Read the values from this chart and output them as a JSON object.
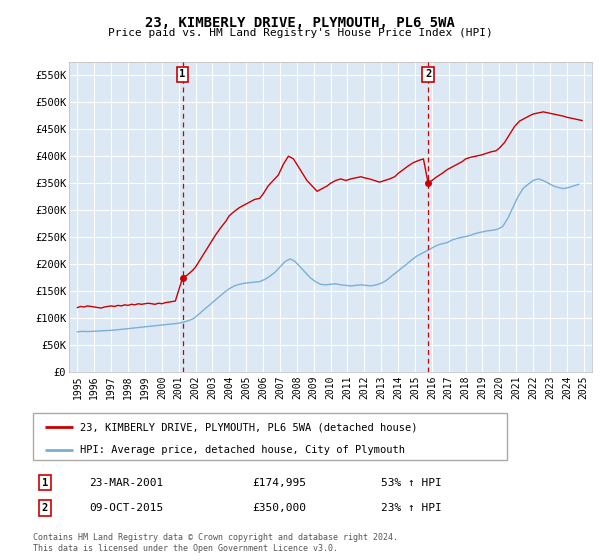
{
  "title": "23, KIMBERLY DRIVE, PLYMOUTH, PL6 5WA",
  "subtitle": "Price paid vs. HM Land Registry's House Price Index (HPI)",
  "bg_color": "#dce9f5",
  "grid_color": "#ffffff",
  "red_line_color": "#cc0000",
  "blue_line_color": "#7ab0d4",
  "marker1_x": 2001.23,
  "marker2_x": 2015.78,
  "marker1_label": "1",
  "marker2_label": "2",
  "ylim": [
    0,
    575000
  ],
  "xlim": [
    1994.5,
    2025.5
  ],
  "yticks": [
    0,
    50000,
    100000,
    150000,
    200000,
    250000,
    300000,
    350000,
    400000,
    450000,
    500000,
    550000
  ],
  "ytick_labels": [
    "£0",
    "£50K",
    "£100K",
    "£150K",
    "£200K",
    "£250K",
    "£300K",
    "£350K",
    "£400K",
    "£450K",
    "£500K",
    "£550K"
  ],
  "xticks": [
    1995,
    1996,
    1997,
    1998,
    1999,
    2000,
    2001,
    2002,
    2003,
    2004,
    2005,
    2006,
    2007,
    2008,
    2009,
    2010,
    2011,
    2012,
    2013,
    2014,
    2015,
    2016,
    2017,
    2018,
    2019,
    2020,
    2021,
    2022,
    2023,
    2024,
    2025
  ],
  "legend_label_red": "23, KIMBERLY DRIVE, PLYMOUTH, PL6 5WA (detached house)",
  "legend_label_blue": "HPI: Average price, detached house, City of Plymouth",
  "annotation1_date": "23-MAR-2001",
  "annotation1_price": "£174,995",
  "annotation1_hpi": "53% ↑ HPI",
  "annotation2_date": "09-OCT-2015",
  "annotation2_price": "£350,000",
  "annotation2_hpi": "23% ↑ HPI",
  "footer": "Contains HM Land Registry data © Crown copyright and database right 2024.\nThis data is licensed under the Open Government Licence v3.0.",
  "red_x": [
    1995.0,
    1995.2,
    1995.4,
    1995.6,
    1995.8,
    1996.0,
    1996.2,
    1996.4,
    1996.6,
    1996.8,
    1997.0,
    1997.2,
    1997.4,
    1997.6,
    1997.8,
    1998.0,
    1998.2,
    1998.4,
    1998.6,
    1998.8,
    1999.0,
    1999.2,
    1999.4,
    1999.6,
    1999.8,
    2000.0,
    2000.2,
    2000.4,
    2000.6,
    2000.8,
    2001.23,
    2001.5,
    2001.8,
    2002.0,
    2002.3,
    2002.6,
    2002.9,
    2003.2,
    2003.5,
    2003.8,
    2004.0,
    2004.3,
    2004.6,
    2004.9,
    2005.2,
    2005.5,
    2005.8,
    2006.0,
    2006.3,
    2006.6,
    2006.9,
    2007.2,
    2007.5,
    2007.8,
    2008.0,
    2008.3,
    2008.6,
    2008.9,
    2009.2,
    2009.5,
    2009.8,
    2010.0,
    2010.3,
    2010.6,
    2010.9,
    2011.2,
    2011.5,
    2011.8,
    2012.0,
    2012.3,
    2012.6,
    2012.9,
    2013.2,
    2013.5,
    2013.8,
    2014.0,
    2014.3,
    2014.6,
    2014.9,
    2015.2,
    2015.5,
    2015.78,
    2016.0,
    2016.3,
    2016.6,
    2016.9,
    2017.2,
    2017.5,
    2017.8,
    2018.0,
    2018.3,
    2018.6,
    2018.9,
    2019.2,
    2019.5,
    2019.8,
    2020.0,
    2020.3,
    2020.6,
    2020.9,
    2021.2,
    2021.5,
    2021.8,
    2022.0,
    2022.3,
    2022.6,
    2022.9,
    2023.2,
    2023.5,
    2023.8,
    2024.0,
    2024.3,
    2024.6,
    2024.9
  ],
  "red_y": [
    120000,
    122000,
    121000,
    123000,
    122000,
    121000,
    120000,
    119000,
    121000,
    122000,
    123000,
    122000,
    124000,
    123000,
    125000,
    124000,
    126000,
    125000,
    127000,
    126000,
    127000,
    128000,
    127000,
    126000,
    128000,
    127000,
    129000,
    130000,
    131000,
    132000,
    174995,
    180000,
    188000,
    195000,
    210000,
    225000,
    240000,
    255000,
    268000,
    280000,
    290000,
    298000,
    305000,
    310000,
    315000,
    320000,
    322000,
    330000,
    345000,
    355000,
    365000,
    385000,
    400000,
    395000,
    385000,
    370000,
    355000,
    345000,
    335000,
    340000,
    345000,
    350000,
    355000,
    358000,
    355000,
    358000,
    360000,
    362000,
    360000,
    358000,
    355000,
    352000,
    355000,
    358000,
    362000,
    368000,
    375000,
    382000,
    388000,
    392000,
    395000,
    350000,
    355000,
    362000,
    368000,
    375000,
    380000,
    385000,
    390000,
    395000,
    398000,
    400000,
    402000,
    405000,
    408000,
    410000,
    415000,
    425000,
    440000,
    455000,
    465000,
    470000,
    475000,
    478000,
    480000,
    482000,
    480000,
    478000,
    476000,
    474000,
    472000,
    470000,
    468000,
    466000
  ],
  "blue_x": [
    1995.0,
    1995.3,
    1995.6,
    1995.9,
    1996.2,
    1996.5,
    1996.8,
    1997.1,
    1997.4,
    1997.7,
    1998.0,
    1998.3,
    1998.6,
    1998.9,
    1999.2,
    1999.5,
    1999.8,
    2000.1,
    2000.4,
    2000.7,
    2001.0,
    2001.3,
    2001.6,
    2001.9,
    2002.2,
    2002.5,
    2002.8,
    2003.1,
    2003.4,
    2003.7,
    2004.0,
    2004.3,
    2004.6,
    2004.9,
    2005.2,
    2005.5,
    2005.8,
    2006.1,
    2006.4,
    2006.7,
    2007.0,
    2007.3,
    2007.6,
    2007.9,
    2008.2,
    2008.5,
    2008.8,
    2009.1,
    2009.4,
    2009.7,
    2010.0,
    2010.3,
    2010.6,
    2010.9,
    2011.2,
    2011.5,
    2011.8,
    2012.1,
    2012.4,
    2012.7,
    2013.0,
    2013.3,
    2013.6,
    2013.9,
    2014.2,
    2014.5,
    2014.8,
    2015.1,
    2015.4,
    2015.7,
    2016.0,
    2016.3,
    2016.6,
    2016.9,
    2017.2,
    2017.5,
    2017.8,
    2018.1,
    2018.4,
    2018.7,
    2019.0,
    2019.3,
    2019.6,
    2019.9,
    2020.2,
    2020.5,
    2020.8,
    2021.1,
    2021.4,
    2021.7,
    2022.0,
    2022.3,
    2022.6,
    2022.9,
    2023.2,
    2023.5,
    2023.8,
    2024.1,
    2024.4,
    2024.7
  ],
  "blue_y": [
    75000,
    76000,
    75500,
    76000,
    76500,
    77000,
    77500,
    78000,
    79000,
    80000,
    81000,
    82000,
    83000,
    84000,
    85000,
    86000,
    87000,
    88000,
    89000,
    90000,
    91000,
    93000,
    96000,
    100000,
    108000,
    116000,
    124000,
    132000,
    140000,
    148000,
    155000,
    160000,
    163000,
    165000,
    166000,
    167000,
    168000,
    172000,
    178000,
    185000,
    195000,
    205000,
    210000,
    205000,
    195000,
    185000,
    175000,
    168000,
    163000,
    162000,
    163000,
    164000,
    162000,
    161000,
    160000,
    161000,
    162000,
    161000,
    160000,
    162000,
    165000,
    170000,
    178000,
    185000,
    193000,
    200000,
    208000,
    215000,
    220000,
    225000,
    230000,
    235000,
    238000,
    240000,
    245000,
    248000,
    250000,
    252000,
    255000,
    258000,
    260000,
    262000,
    263000,
    265000,
    270000,
    285000,
    305000,
    325000,
    340000,
    348000,
    355000,
    358000,
    355000,
    350000,
    345000,
    342000,
    340000,
    342000,
    345000,
    348000
  ]
}
